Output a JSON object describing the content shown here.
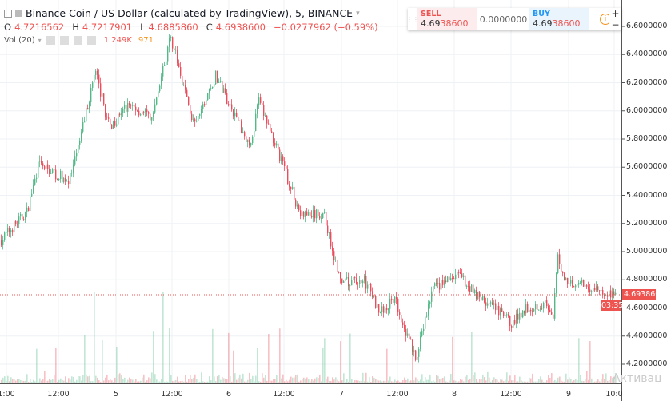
{
  "title": "Binance Coin / US Dollar (calculated by TradingView), 5, BINANCE",
  "ohlc": {
    "o": "4.7216562",
    "h": "4.7217901",
    "l": "4.6885860",
    "c": "4.6938600",
    "change": "−0.0277962 (−0.59%)"
  },
  "volume": {
    "label": "Vol (20)",
    "value": "1.249K",
    "ma": "971"
  },
  "trade_panel": {
    "sell_label": "SELL",
    "sell_price_a": "4.69",
    "sell_price_b": "38600",
    "spread": "0.0000000",
    "buy_label": "BUY",
    "buy_price_a": "4.69",
    "buy_price_b": "38600",
    "info_icon": "i",
    "zoom_in": "+",
    "zoom_out": "−"
  },
  "price_axis": [
    "6.6000000",
    "6.4000000",
    "6.2000000",
    "6.0000000",
    "5.8000000",
    "5.6000000",
    "5.4000000",
    "5.2000000",
    "5.0000000",
    "4.8000000",
    "4.6000000",
    "4.4000000",
    "4.2000000"
  ],
  "current_price": "4.6938600",
  "countdown": "03:35",
  "time_axis": [
    "1:00",
    "12:00",
    "5",
    "12:00",
    "6",
    "12:00",
    "7",
    "12:00",
    "8",
    "12:00",
    "9",
    "10:0"
  ],
  "watermark": "Активац",
  "colors": {
    "up": "#53b987",
    "down": "#eb4d5c",
    "price_line": "#ef5350"
  },
  "chart_data": {
    "type": "candlestick",
    "interval": "5",
    "price_path": [
      [
        "04 00:00",
        5.1
      ],
      [
        "04 05:00",
        5.28
      ],
      [
        "04 07:30",
        5.62
      ],
      [
        "04 14:00",
        5.5
      ],
      [
        "04 15:30",
        5.68
      ],
      [
        "04 19:30",
        6.28
      ],
      [
        "04 22:30",
        5.88
      ],
      [
        "05 02:30",
        6.05
      ],
      [
        "05 07:30",
        5.94
      ],
      [
        "05 11:30",
        6.53
      ],
      [
        "05 16:30",
        5.88
      ],
      [
        "05 21:00",
        6.25
      ],
      [
        "06 04:30",
        5.74
      ],
      [
        "06 06:00",
        6.08
      ],
      [
        "06 09:30",
        5.78
      ],
      [
        "06 15:00",
        5.26
      ],
      [
        "06 20:00",
        5.26
      ],
      [
        "06 23:30",
        4.77
      ],
      [
        "07 04:30",
        4.8
      ],
      [
        "07 08:00",
        4.57
      ],
      [
        "07 11:00",
        4.66
      ],
      [
        "07 15:30",
        4.23
      ],
      [
        "07 19:00",
        4.74
      ],
      [
        "08 00:30",
        4.83
      ],
      [
        "08 05:30",
        4.66
      ],
      [
        "08 08:00",
        4.6
      ],
      [
        "08 12:00",
        4.49
      ],
      [
        "08 14:30",
        4.6
      ],
      [
        "08 19:00",
        4.63
      ],
      [
        "08 20:30",
        4.49
      ],
      [
        "08 21:30",
        4.97
      ],
      [
        "08 23:00",
        4.8
      ],
      [
        "09 09:30",
        4.69
      ]
    ],
    "ylim": [
      4.1,
      6.7
    ]
  }
}
